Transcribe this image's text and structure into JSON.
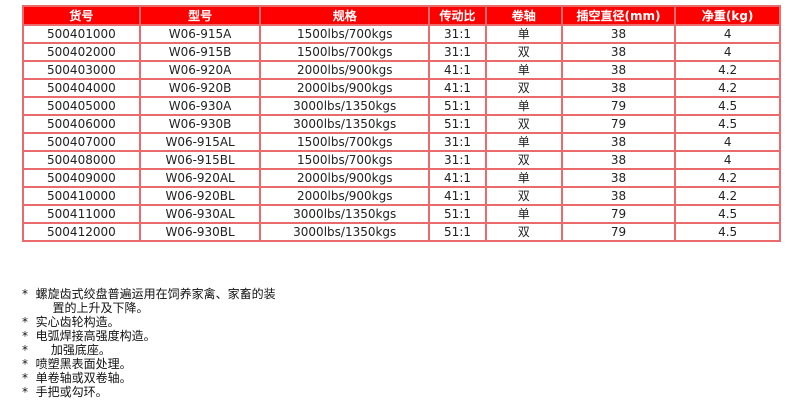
{
  "table": {
    "headers": [
      "货号",
      "型号",
      "规格",
      "传动比",
      "卷轴",
      "插空直径(mm)",
      "净重(kg)"
    ],
    "rows": [
      [
        "500401000",
        "W06-915A",
        "1500lbs/700kgs",
        "31:1",
        "单",
        "38",
        "4"
      ],
      [
        "500402000",
        "W06-915B",
        "1500lbs/700kgs",
        "31:1",
        "双",
        "38",
        "4"
      ],
      [
        "500403000",
        "W06-920A",
        "2000lbs/900kgs",
        "41:1",
        "单",
        "38",
        "4.2"
      ],
      [
        "500404000",
        "W06-920B",
        "2000lbs/900kgs",
        "41:1",
        "双",
        "38",
        "4.2"
      ],
      [
        "500405000",
        "W06-930A",
        "3000lbs/1350kgs",
        "51:1",
        "单",
        "79",
        "4.5"
      ],
      [
        "500406000",
        "W06-930B",
        "3000lbs/1350kgs",
        "51:1",
        "双",
        "79",
        "4.5"
      ],
      [
        "500407000",
        "W06-915AL",
        "1500lbs/700kgs",
        "31:1",
        "单",
        "38",
        "4"
      ],
      [
        "500408000",
        "W06-915BL",
        "1500lbs/700kgs",
        "31:1",
        "双",
        "38",
        "4"
      ],
      [
        "500409000",
        "W06-920AL",
        "2000lbs/900kgs",
        "41:1",
        "单",
        "38",
        "4.2"
      ],
      [
        "500410000",
        "W06-920BL",
        "2000lbs/900kgs",
        "41:1",
        "双",
        "38",
        "4.2"
      ],
      [
        "500411000",
        "W06-930AL",
        "3000lbs/1350kgs",
        "51:1",
        "单",
        "79",
        "4.5"
      ],
      [
        "500412000",
        "W06-930BL",
        "3000lbs/1350kgs",
        "51:1",
        "双",
        "79",
        "4.5"
      ]
    ]
  },
  "notes": [
    "*  螺旋齿式绞盘普遍运用在饲养家禽、家畜的装",
    "        置的上升及下降。",
    "*  实心齿轮构造。",
    "*  电弧焊接高强度构造。",
    "*      加强底座。",
    "*  喷塑黑表面处理。",
    "*  单卷轴或双卷轴。",
    "*  手把或勾环。"
  ]
}
